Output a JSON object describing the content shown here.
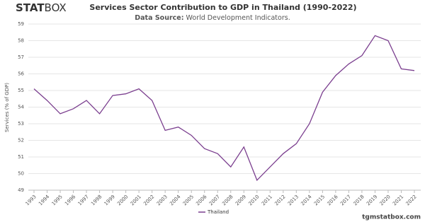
{
  "logo": {
    "bold": "STAT",
    "light": "BOX"
  },
  "footer": "tgmstatbox.com",
  "chart_data": {
    "type": "line",
    "title": "Services Sector Contribution to GDP in Thailand (1990-2022)",
    "subtitle": {
      "label": "Data Source:",
      "text": "World Development Indicators."
    },
    "y_label": "Services (% of GDP)",
    "x": [
      1993,
      1994,
      1995,
      1996,
      1997,
      1998,
      1999,
      2000,
      2001,
      2002,
      2003,
      2004,
      2005,
      2006,
      2007,
      2008,
      2009,
      2010,
      2011,
      2012,
      2013,
      2014,
      2015,
      2016,
      2017,
      2018,
      2019,
      2020,
      2021,
      2022
    ],
    "series": [
      {
        "name": "Thailand",
        "color": "#7b3f8f",
        "values": [
          55.1,
          54.4,
          53.6,
          53.9,
          54.4,
          53.6,
          54.7,
          54.8,
          55.1,
          54.4,
          52.6,
          52.8,
          52.3,
          51.5,
          51.2,
          50.4,
          51.6,
          49.6,
          50.4,
          51.2,
          51.8,
          53.0,
          54.9,
          55.9,
          56.6,
          57.1,
          58.3,
          58.0,
          56.3,
          56.2
        ]
      }
    ],
    "xlim": [
      1993,
      2022
    ],
    "xticks": [
      1993,
      1994,
      1995,
      1996,
      1997,
      1998,
      1999,
      2000,
      2001,
      2002,
      2003,
      2004,
      2005,
      2006,
      2007,
      2008,
      2009,
      2010,
      2011,
      2012,
      2013,
      2014,
      2015,
      2016,
      2017,
      2018,
      2019,
      2020,
      2021,
      2022
    ],
    "ylim": [
      49,
      59
    ],
    "yticks": [
      49,
      50,
      51,
      52,
      53,
      54,
      55,
      56,
      57,
      58,
      59
    ],
    "grid": true,
    "legend": "bottom"
  }
}
